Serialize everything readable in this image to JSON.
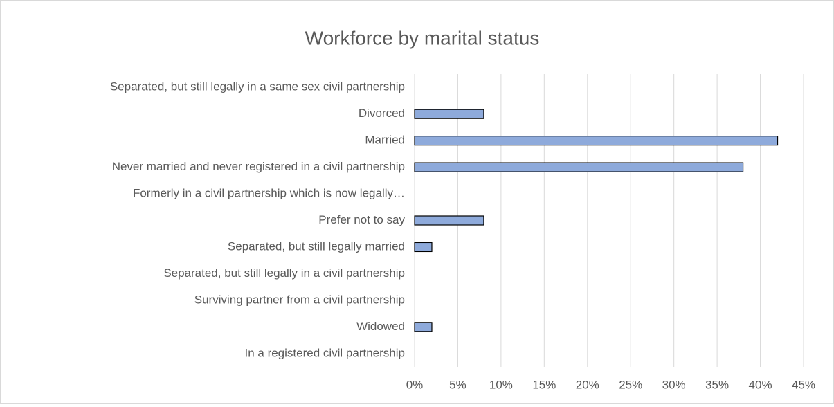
{
  "chart_data": {
    "type": "bar",
    "orientation": "horizontal",
    "title": "Workforce by marital status",
    "categories": [
      "Separated, but still legally in a same sex civil partnership",
      "Divorced",
      "Married",
      "Never married and never registered in a civil partnership",
      "Formerly in a civil partnership which is now legally…",
      "Prefer not to say",
      "Separated, but still legally married",
      "Separated, but still legally in a civil partnership",
      "Surviving partner from a civil partnership",
      "Widowed",
      "In a registered civil partnership"
    ],
    "values": [
      0,
      8,
      42,
      38,
      0,
      8,
      2,
      0,
      0,
      2,
      0
    ],
    "color": "#8eaadb",
    "xlim": [
      0,
      45
    ],
    "xticks": [
      {
        "value": 0,
        "label": "0%"
      },
      {
        "value": 5,
        "label": "5%"
      },
      {
        "value": 10,
        "label": "10%"
      },
      {
        "value": 15,
        "label": "15%"
      },
      {
        "value": 20,
        "label": "20%"
      },
      {
        "value": 25,
        "label": "25%"
      },
      {
        "value": 30,
        "label": "30%"
      },
      {
        "value": 35,
        "label": "35%"
      },
      {
        "value": 40,
        "label": "40%"
      },
      {
        "value": 45,
        "label": "45%"
      }
    ],
    "grid": true
  }
}
